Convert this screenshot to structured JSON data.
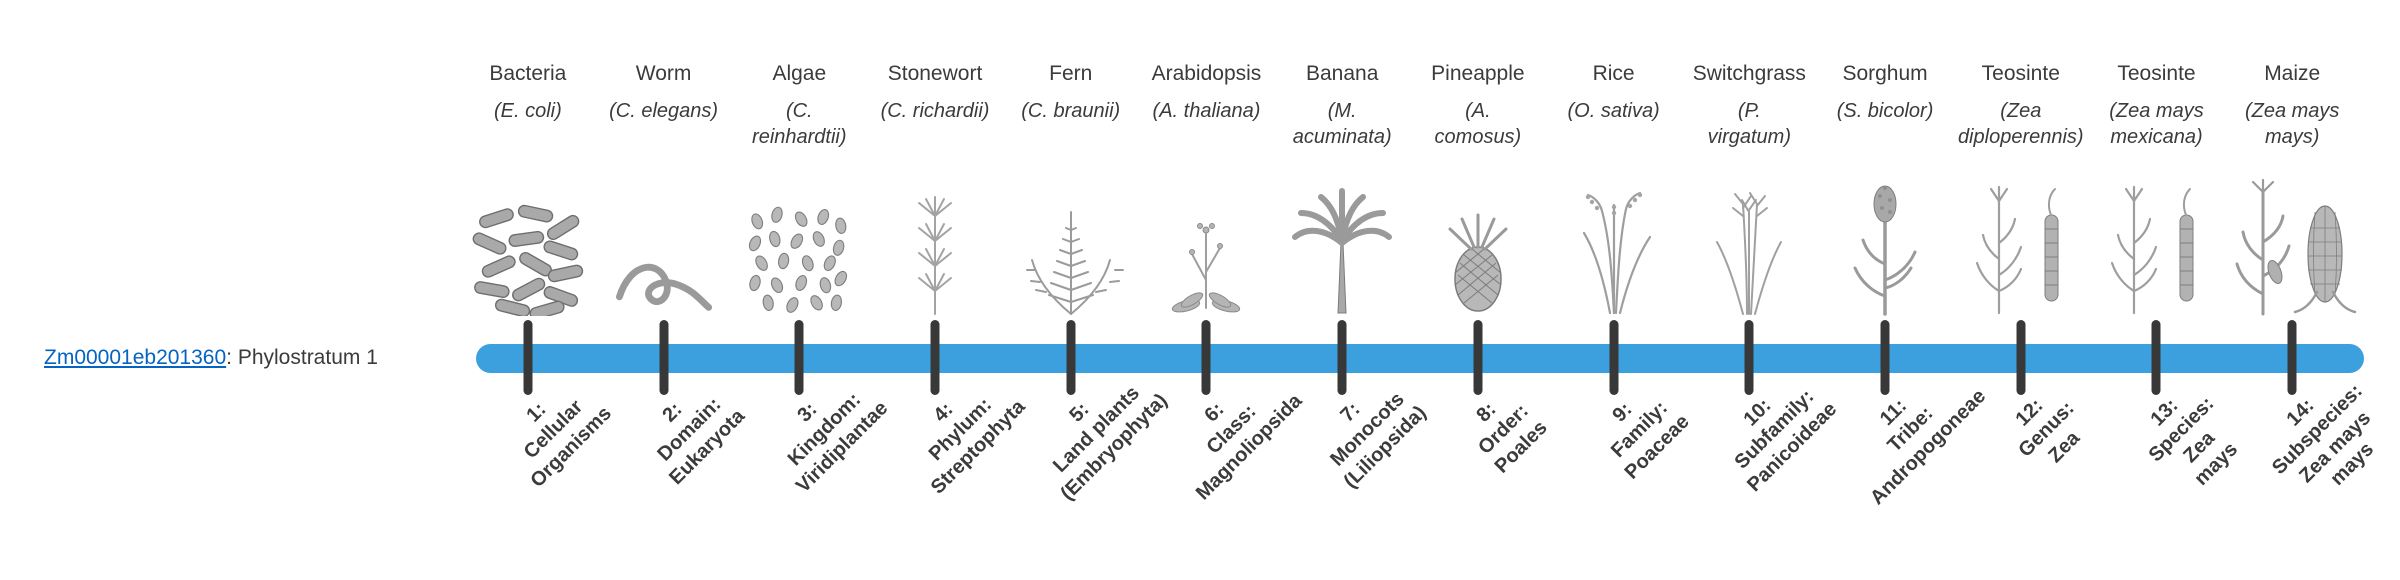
{
  "gene": {
    "id": "Zm00001eb201360",
    "suffix": ": Phylostratum 1"
  },
  "colors": {
    "bar": "#3CA0DF",
    "tick": "#383838",
    "link": "#0563C1",
    "text": "#3B3B3B"
  },
  "taxa": [
    {
      "common": "Bacteria",
      "sci": "(E. coli)",
      "icon": "bacteria-icon",
      "stratum": "1:\nCellular\nOrganisms"
    },
    {
      "common": "Worm",
      "sci": "(C. elegans)",
      "icon": "worm-icon",
      "stratum": "2:\nDomain:\nEukaryota"
    },
    {
      "common": "Algae",
      "sci": "(C.\nreinhardtii)",
      "icon": "algae-icon",
      "stratum": "3:\nKingdom:\nViridiplantae"
    },
    {
      "common": "Stonewort",
      "sci": "(C. richardii)",
      "icon": "stonewort-icon",
      "stratum": "4:\nPhylum:\nStreptophyta"
    },
    {
      "common": "Fern",
      "sci": "(C. braunii)",
      "icon": "fern-icon",
      "stratum": "5:\nLand plants\n(Embryophyta)"
    },
    {
      "common": "Arabidopsis",
      "sci": "(A. thaliana)",
      "icon": "arabidopsis-icon",
      "stratum": "6:\nClass:\nMagnoliopsida"
    },
    {
      "common": "Banana",
      "sci": "(M.\nacuminata)",
      "icon": "banana-icon",
      "stratum": "7:\nMonocots\n(Liliopsida)"
    },
    {
      "common": "Pineapple",
      "sci": "(A.\ncomosus)",
      "icon": "pineapple-icon",
      "stratum": "8:\nOrder:\nPoales"
    },
    {
      "common": "Rice",
      "sci": "(O. sativa)",
      "icon": "rice-icon",
      "stratum": "9:\nFamily:\nPoaceae"
    },
    {
      "common": "Switchgrass",
      "sci": "(P.\nvirgatum)",
      "icon": "switchgrass-icon",
      "stratum": "10:\nSubfamily:\nPanicoideae"
    },
    {
      "common": "Sorghum",
      "sci": "(S. bicolor)",
      "icon": "sorghum-icon",
      "stratum": "11:\nTribe:\nAndropogoneae"
    },
    {
      "common": "Teosinte",
      "sci": "(Zea\ndiploperennis)",
      "icon": "teosinte-icon",
      "stratum": "12:\nGenus:\nZea"
    },
    {
      "common": "Teosinte",
      "sci": "(Zea mays\nmexicana)",
      "icon": "teosinte-icon",
      "stratum": "13:\nSpecies:\nZea\nmays"
    },
    {
      "common": "Maize",
      "sci": "(Zea mays\nmays)",
      "icon": "maize-icon",
      "stratum": "14:\nSubspecies:\nZea mays\nmays"
    }
  ]
}
